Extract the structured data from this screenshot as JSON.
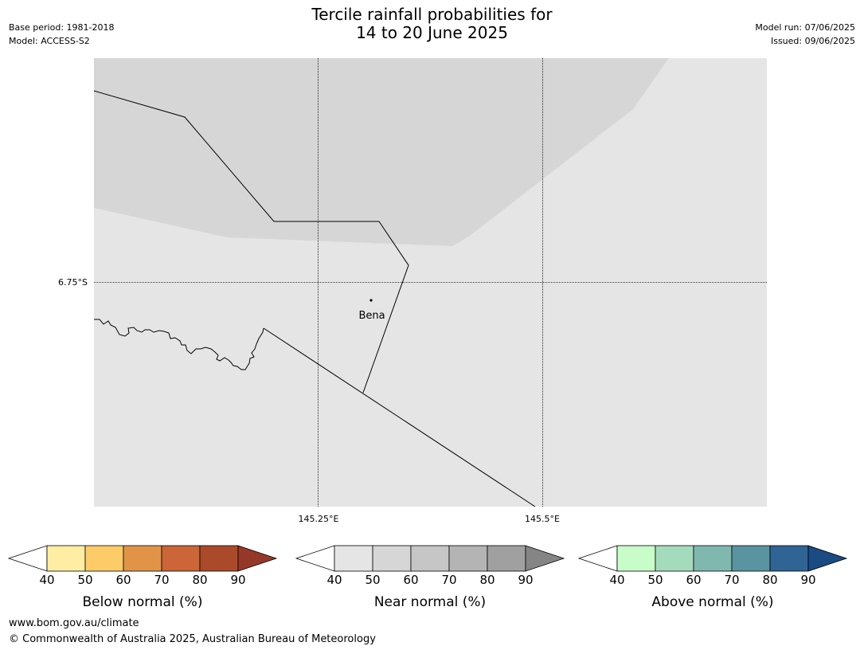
{
  "header": {
    "title_line1": "Tercile rainfall probabilities for",
    "title_line2": "14 to 20 June 2025",
    "base_period": "Base period: 1981-2018",
    "model": "Model: ACCESS-S2",
    "model_run": "Model run: 07/06/2025",
    "issued": "Issued: 09/06/2025"
  },
  "map": {
    "latitude_label": "6.75°S",
    "longitude_labels": [
      "145.25°E",
      "145.5°E"
    ],
    "place_label": "Bena",
    "fill_colors": {
      "near_normal_40_50": "#e5e5e5",
      "near_normal_50_60": "#d6d6d6"
    }
  },
  "colorbars": [
    {
      "label": "Below normal (%)",
      "ticks": [
        "40",
        "50",
        "60",
        "70",
        "80",
        "90"
      ],
      "low_color": "#ffffff",
      "colors": [
        "#feeda3",
        "#fdcb68",
        "#e19448",
        "#cc6537",
        "#ab4a2a"
      ],
      "high_color": "#963828"
    },
    {
      "label": "Near normal (%)",
      "ticks": [
        "40",
        "50",
        "60",
        "70",
        "80",
        "90"
      ],
      "low_color": "#ffffff",
      "colors": [
        "#e5e5e5",
        "#d6d6d6",
        "#c6c6c6",
        "#b4b4b4",
        "#a0a0a0"
      ],
      "high_color": "#858585"
    },
    {
      "label": "Above normal (%)",
      "ticks": [
        "40",
        "50",
        "60",
        "70",
        "80",
        "90"
      ],
      "low_color": "#ffffff",
      "colors": [
        "#c8fdc9",
        "#a5dbbd",
        "#80b8b0",
        "#5a94a1",
        "#306495"
      ],
      "high_color": "#1a4b83"
    }
  ],
  "footer": {
    "url": "www.bom.gov.au/climate",
    "copyright": "© Commonwealth of Australia 2025, Australian Bureau of Meteorology"
  }
}
